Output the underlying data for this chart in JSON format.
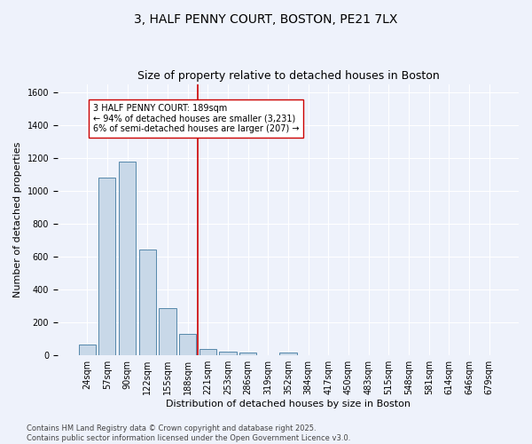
{
  "title": "3, HALF PENNY COURT, BOSTON, PE21 7LX",
  "subtitle": "Size of property relative to detached houses in Boston",
  "xlabel": "Distribution of detached houses by size in Boston",
  "ylabel": "Number of detached properties",
  "bin_labels": [
    "24sqm",
    "57sqm",
    "90sqm",
    "122sqm",
    "155sqm",
    "188sqm",
    "221sqm",
    "253sqm",
    "286sqm",
    "319sqm",
    "352sqm",
    "384sqm",
    "417sqm",
    "450sqm",
    "483sqm",
    "515sqm",
    "548sqm",
    "581sqm",
    "614sqm",
    "646sqm",
    "679sqm"
  ],
  "bin_values": [
    65,
    1080,
    1180,
    645,
    285,
    130,
    40,
    22,
    18,
    0,
    18,
    0,
    0,
    0,
    0,
    0,
    0,
    0,
    0,
    0,
    0
  ],
  "bar_color": "#c8d8e8",
  "bar_edge_color": "#5588aa",
  "vline_x_index": 5.5,
  "vline_color": "#cc0000",
  "annotation_text": "3 HALF PENNY COURT: 189sqm\n← 94% of detached houses are smaller (3,231)\n6% of semi-detached houses are larger (207) →",
  "annotation_box_color": "#ffffff",
  "annotation_box_edge": "#cc0000",
  "ylim": [
    0,
    1650
  ],
  "yticks": [
    0,
    200,
    400,
    600,
    800,
    1000,
    1200,
    1400,
    1600
  ],
  "footer_text": "Contains HM Land Registry data © Crown copyright and database right 2025.\nContains public sector information licensed under the Open Government Licence v3.0.",
  "bg_color": "#eef2fb",
  "grid_color": "#ffffff",
  "title_fontsize": 10,
  "subtitle_fontsize": 9,
  "axis_label_fontsize": 8,
  "tick_fontsize": 7,
  "annotation_fontsize": 7,
  "footer_fontsize": 6
}
